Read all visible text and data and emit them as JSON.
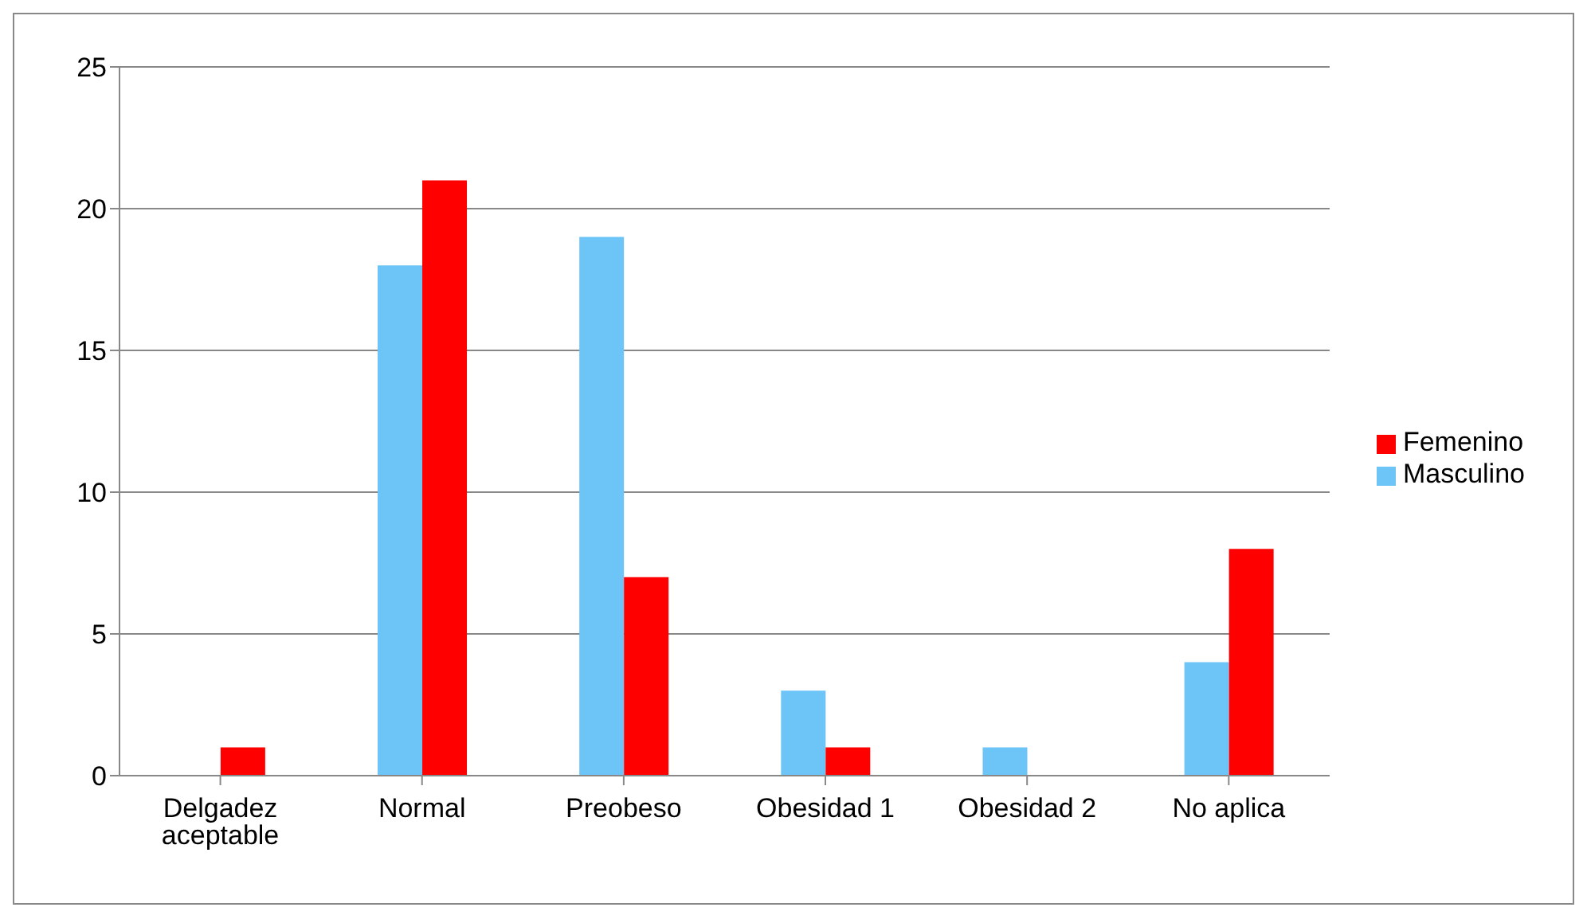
{
  "chart_data": {
    "type": "bar",
    "categories": [
      "Delgadez aceptable",
      "Normal",
      "Preobeso",
      "Obesidad 1",
      "Obesidad 2",
      "No aplica"
    ],
    "series": [
      {
        "name": "Masculino",
        "color": "#6cc4f7",
        "values": [
          0,
          18,
          19,
          3,
          1,
          4
        ]
      },
      {
        "name": "Femenino",
        "color": "#ff0000",
        "values": [
          1,
          21,
          7,
          1,
          0,
          8
        ]
      }
    ],
    "ylim": [
      0,
      25
    ],
    "yticks": [
      0,
      5,
      10,
      15,
      20,
      25
    ],
    "grid": "y",
    "legend": "right"
  }
}
